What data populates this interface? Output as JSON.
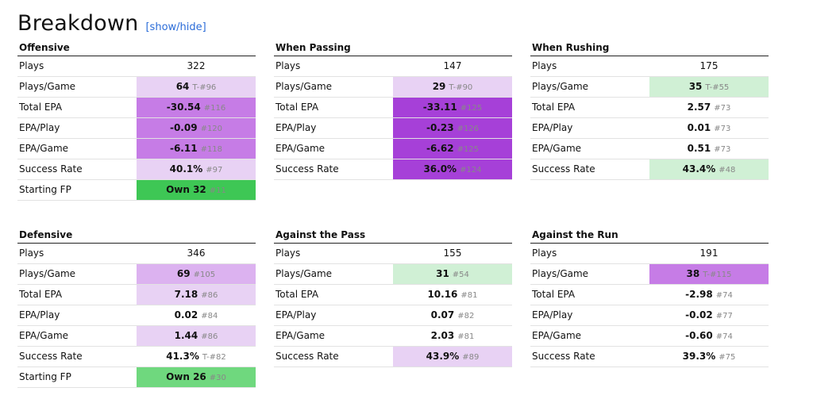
{
  "page": {
    "title": "Breakdown",
    "toggle_label": "[show/hide]"
  },
  "tables": [
    {
      "title": "Offensive",
      "rows": [
        {
          "label": "Plays",
          "value": "322",
          "rank": "",
          "color": ""
        },
        {
          "label": "Plays/Game",
          "value": "64",
          "rank": "T-#96",
          "color": "#e8d2f4"
        },
        {
          "label": "Total EPA",
          "value": "-30.54",
          "rank": "#116",
          "color": "#c67ce6"
        },
        {
          "label": "EPA/Play",
          "value": "-0.09",
          "rank": "#120",
          "color": "#c67ce6"
        },
        {
          "label": "EPA/Game",
          "value": "-6.11",
          "rank": "#118",
          "color": "#c67ce6"
        },
        {
          "label": "Success Rate",
          "value": "40.1%",
          "rank": "#97",
          "color": "#e8d2f4"
        },
        {
          "label": "Starting FP",
          "value": "Own 32",
          "rank": "#11",
          "color": "#3ec755"
        }
      ]
    },
    {
      "title": "When Passing",
      "rows": [
        {
          "label": "Plays",
          "value": "147",
          "rank": "",
          "color": ""
        },
        {
          "label": "Plays/Game",
          "value": "29",
          "rank": "T-#90",
          "color": "#e8d2f4"
        },
        {
          "label": "Total EPA",
          "value": "-33.11",
          "rank": "#125",
          "color": "#a640d8"
        },
        {
          "label": "EPA/Play",
          "value": "-0.23",
          "rank": "#126",
          "color": "#a640d8"
        },
        {
          "label": "EPA/Game",
          "value": "-6.62",
          "rank": "#125",
          "color": "#a640d8"
        },
        {
          "label": "Success Rate",
          "value": "36.0%",
          "rank": "#124",
          "color": "#a640d8"
        }
      ]
    },
    {
      "title": "When Rushing",
      "rows": [
        {
          "label": "Plays",
          "value": "175",
          "rank": "",
          "color": ""
        },
        {
          "label": "Plays/Game",
          "value": "35",
          "rank": "T-#55",
          "color": "#d0f0d5"
        },
        {
          "label": "Total EPA",
          "value": "2.57",
          "rank": "#73",
          "color": ""
        },
        {
          "label": "EPA/Play",
          "value": "0.01",
          "rank": "#73",
          "color": ""
        },
        {
          "label": "EPA/Game",
          "value": "0.51",
          "rank": "#73",
          "color": ""
        },
        {
          "label": "Success Rate",
          "value": "43.4%",
          "rank": "#48",
          "color": "#d0f0d5"
        }
      ]
    },
    {
      "title": "Defensive",
      "rows": [
        {
          "label": "Plays",
          "value": "346",
          "rank": "",
          "color": ""
        },
        {
          "label": "Plays/Game",
          "value": "69",
          "rank": "#105",
          "color": "#dcb2f0"
        },
        {
          "label": "Total EPA",
          "value": "7.18",
          "rank": "#86",
          "color": "#e8d2f4"
        },
        {
          "label": "EPA/Play",
          "value": "0.02",
          "rank": "#84",
          "color": ""
        },
        {
          "label": "EPA/Game",
          "value": "1.44",
          "rank": "#86",
          "color": "#e8d2f4"
        },
        {
          "label": "Success Rate",
          "value": "41.3%",
          "rank": "T-#82",
          "color": ""
        },
        {
          "label": "Starting FP",
          "value": "Own 26",
          "rank": "#30",
          "color": "#6fd87e"
        }
      ]
    },
    {
      "title": "Against the Pass",
      "rows": [
        {
          "label": "Plays",
          "value": "155",
          "rank": "",
          "color": ""
        },
        {
          "label": "Plays/Game",
          "value": "31",
          "rank": "#54",
          "color": "#d0f0d5"
        },
        {
          "label": "Total EPA",
          "value": "10.16",
          "rank": "#81",
          "color": ""
        },
        {
          "label": "EPA/Play",
          "value": "0.07",
          "rank": "#82",
          "color": ""
        },
        {
          "label": "EPA/Game",
          "value": "2.03",
          "rank": "#81",
          "color": ""
        },
        {
          "label": "Success Rate",
          "value": "43.9%",
          "rank": "#89",
          "color": "#e8d2f4"
        }
      ]
    },
    {
      "title": "Against the Run",
      "rows": [
        {
          "label": "Plays",
          "value": "191",
          "rank": "",
          "color": ""
        },
        {
          "label": "Plays/Game",
          "value": "38",
          "rank": "T-#115",
          "color": "#c67ce6"
        },
        {
          "label": "Total EPA",
          "value": "-2.98",
          "rank": "#74",
          "color": ""
        },
        {
          "label": "EPA/Play",
          "value": "-0.02",
          "rank": "#77",
          "color": ""
        },
        {
          "label": "EPA/Game",
          "value": "-0.60",
          "rank": "#74",
          "color": ""
        },
        {
          "label": "Success Rate",
          "value": "39.3%",
          "rank": "#75",
          "color": ""
        }
      ]
    }
  ]
}
